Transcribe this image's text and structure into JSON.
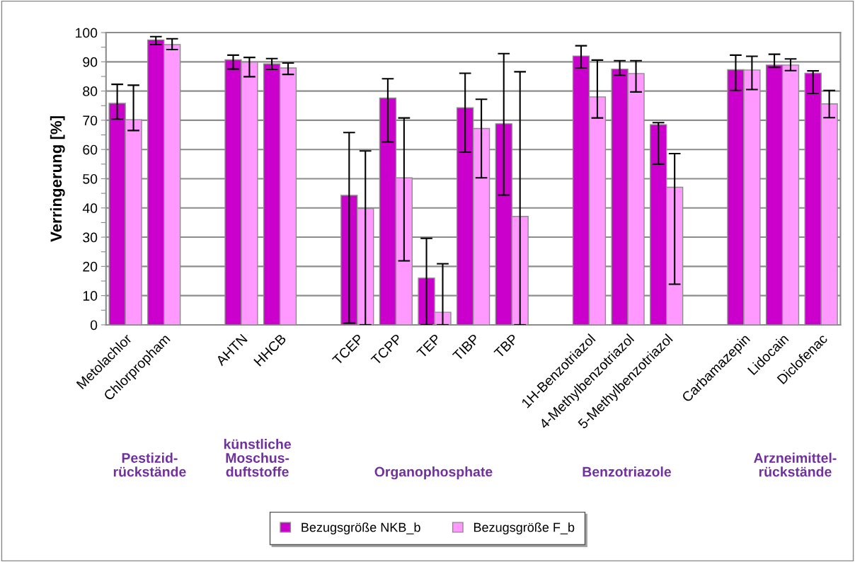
{
  "chart_data": {
    "type": "bar",
    "ylabel": "Verringerung [%]",
    "categories": [
      "Metolachlor",
      "Chlorpropham",
      null,
      "AHTN",
      "HHCB",
      null,
      "TCEP",
      "TCPP",
      "TEP",
      "TIBP",
      "TBP",
      null,
      "1H-Benzotriazol",
      "4-Methylbenzotriazol",
      "5-Methylbenzotriazol",
      null,
      "Carbamazepin",
      "Lidocain",
      "Diclofenac"
    ],
    "series": [
      {
        "name": "Bezugsgröße NKB_b",
        "color": "#cc00cc",
        "values": [
          75.8,
          97.5,
          null,
          90.7,
          89.3,
          null,
          44.3,
          77.6,
          16.0,
          74.3,
          68.8,
          null,
          92.0,
          87.5,
          68.5,
          null,
          87.3,
          88.9,
          86.1
        ],
        "errors": [
          [
            70.4,
            82.3
          ],
          [
            95.9,
            98.6
          ],
          null,
          [
            87.5,
            92.3
          ],
          [
            87.4,
            91.1
          ],
          null,
          [
            0.6,
            65.8
          ],
          [
            62.6,
            84.2
          ],
          [
            0,
            29.6
          ],
          [
            59.1,
            86.1
          ],
          [
            44.4,
            92.8
          ],
          null,
          [
            87.9,
            95.5
          ],
          [
            85.4,
            90.4
          ],
          [
            55.0,
            69.2
          ],
          null,
          [
            80.2,
            92.3
          ],
          [
            88.1,
            92.6
          ],
          [
            79.2,
            86.9
          ]
        ]
      },
      {
        "name": "Bezugsgröße F_b",
        "color": "#ff99ff",
        "values": [
          70.2,
          95.9,
          null,
          89.9,
          87.9,
          null,
          39.8,
          50.3,
          4.3,
          67.2,
          37.1,
          null,
          78.0,
          86.0,
          47.1,
          null,
          87.2,
          88.9,
          75.6
        ],
        "errors": [
          [
            66.5,
            82.0
          ],
          [
            94.2,
            97.9
          ],
          null,
          [
            84.9,
            91.5
          ],
          [
            85.7,
            89.6
          ],
          null,
          [
            0,
            59.5
          ],
          [
            21.9,
            70.8
          ],
          [
            0,
            20.9
          ],
          [
            50.3,
            77.2
          ],
          [
            0,
            86.6
          ],
          null,
          [
            70.8,
            90.6
          ],
          [
            79.7,
            90.4
          ],
          [
            13.9,
            58.6
          ],
          null,
          [
            80.5,
            91.9
          ],
          [
            87.0,
            91.0
          ],
          [
            70.9,
            80.2
          ]
        ]
      }
    ],
    "ylim": [
      0,
      100
    ],
    "yticks": [
      0,
      {
        "value": 5,
        "label": null
      },
      10,
      {
        "value": 15,
        "label": null
      },
      20,
      {
        "value": 25,
        "label": null
      },
      30,
      {
        "value": 35,
        "label": null
      },
      40,
      {
        "value": 45,
        "label": null
      },
      50,
      {
        "value": 55,
        "label": null
      },
      60,
      {
        "value": 65,
        "label": null
      },
      70,
      {
        "value": 75,
        "label": null
      },
      80,
      {
        "value": 85,
        "label": null
      },
      90,
      {
        "value": 95,
        "label": null
      },
      100
    ],
    "grid": "y",
    "legend": "bottom",
    "annotations": [
      "Pestizid-\nrückstände",
      "künstliche\nMoschus-\nduftstoffe",
      "Organophosphate",
      "Benzotriazole",
      "Arzneimittel-\nrückstände"
    ]
  }
}
